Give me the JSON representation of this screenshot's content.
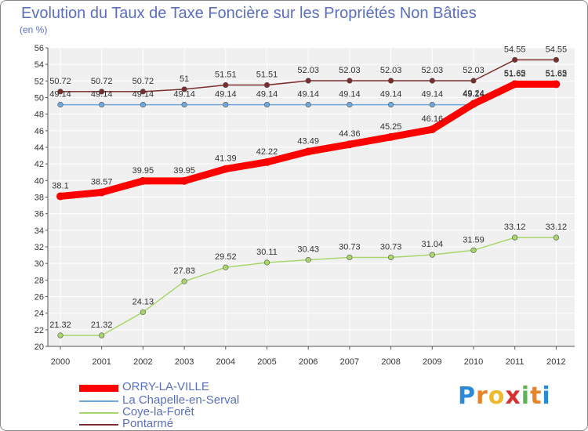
{
  "chart_data": {
    "type": "line",
    "title": "Evolution du Taux de Taxe Foncière sur les Propriétés Non Bâties",
    "subtitle": "(en %)",
    "x": [
      "2000",
      "2001",
      "2002",
      "2003",
      "2004",
      "2005",
      "2006",
      "2007",
      "2008",
      "2009",
      "2010",
      "2011",
      "2012"
    ],
    "ylim": [
      20,
      56
    ],
    "yticks": [
      20,
      22,
      24,
      26,
      28,
      30,
      32,
      34,
      36,
      38,
      40,
      42,
      44,
      46,
      48,
      50,
      52,
      54,
      56
    ],
    "grid": true,
    "legend_position": "bottom-left",
    "series": [
      {
        "name": "ORRY-LA-VILLE",
        "color": "#ff0000",
        "values": [
          38.1,
          38.57,
          39.95,
          39.95,
          41.39,
          42.22,
          43.49,
          44.36,
          45.25,
          46.16,
          49.24,
          51.62,
          51.62
        ],
        "labels": [
          "38.1",
          "38.57",
          "39.95",
          "39.95",
          "41.39",
          "42.22",
          "43.49",
          "44.36",
          "45.25",
          "46.16",
          "49.24",
          "51.62",
          "51.62"
        ]
      },
      {
        "name": "La Chapelle-en-Serval",
        "color": "#6fa8dc",
        "values": [
          49.14,
          49.14,
          49.14,
          49.14,
          49.14,
          49.14,
          49.14,
          49.14,
          49.14,
          49.14,
          49.14,
          51.65,
          51.65
        ],
        "labels": [
          "49.14",
          "49.14",
          "49.14",
          "49.14",
          "49.14",
          "49.14",
          "49.14",
          "49.14",
          "49.14",
          "49.14",
          "49.14",
          "51.65",
          "51.65"
        ]
      },
      {
        "name": "Coye-la-Forêt",
        "color": "#a9d66b",
        "values": [
          21.32,
          21.32,
          24.13,
          27.83,
          29.52,
          30.11,
          30.43,
          30.73,
          30.73,
          31.04,
          31.59,
          33.12,
          33.12
        ],
        "labels": [
          "21.32",
          "21.32",
          "24.13",
          "27.83",
          "29.52",
          "30.11",
          "30.43",
          "30.73",
          "30.73",
          "31.04",
          "31.59",
          "33.12",
          "33.12"
        ]
      },
      {
        "name": "Pontarmé",
        "color": "#7b2c2c",
        "values": [
          50.72,
          50.72,
          50.72,
          51,
          51.51,
          51.51,
          52.03,
          52.03,
          52.03,
          52.03,
          52.03,
          54.55,
          54.55
        ],
        "labels": [
          "50.72",
          "50.72",
          "50.72",
          "51",
          "51.51",
          "51.51",
          "52.03",
          "52.03",
          "52.03",
          "52.03",
          "52.03",
          "54.55",
          "54.55"
        ]
      }
    ]
  },
  "logo": {
    "text": "Proxiti",
    "letters": [
      "P",
      "r",
      "o",
      "x",
      "i",
      "t",
      "i"
    ],
    "colors": [
      "#2b8ad8",
      "#e8832a",
      "#f0b82d",
      "#d83030",
      "#5ab552",
      "#e8832a",
      "#2b8ad8"
    ]
  }
}
